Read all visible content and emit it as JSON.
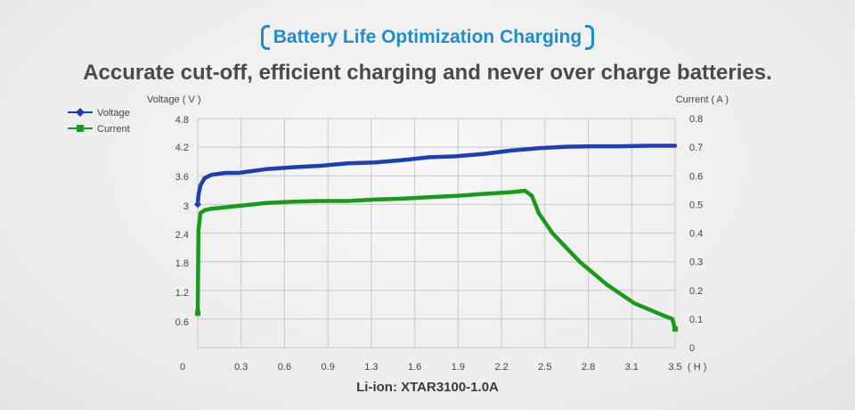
{
  "title": "Battery Life Optimization Charging",
  "subtitle": "Accurate cut-off, efficient charging and never over charge batteries.",
  "caption": "Li-ion: XTAR3100-1.0A",
  "colors": {
    "title": "#1d8ecd",
    "voltage": "#1f3fb0",
    "current": "#1a9a1a",
    "grid": "#c8c8c8"
  },
  "chart_data": {
    "type": "line",
    "ylabel": "Voltage ( V )",
    "y2label": "Current ( A )",
    "xunit": "( H )",
    "x_ticks": [
      "0",
      "0.3",
      "0.6",
      "0.9",
      "1.3",
      "1.6",
      "1.9",
      "2.2",
      "2.5",
      "2.8",
      "3.1",
      "3.5"
    ],
    "y_ticks": [
      "0.6",
      "1.2",
      "1.8",
      "2.4",
      "3",
      "3.6",
      "4.2",
      "4.8"
    ],
    "y2_ticks": [
      "0",
      "0.1",
      "0.2",
      "0.3",
      "0.4",
      "0.5",
      "0.6",
      "0.7",
      "0.8"
    ],
    "xlim": [
      0,
      3.5
    ],
    "ylim": [
      0,
      4.8
    ],
    "y2lim": [
      0,
      0.8
    ],
    "grid": true,
    "legend_position": "top-left",
    "series": [
      {
        "name": "Voltage",
        "axis": "left",
        "marker": "diamond",
        "x": [
          0,
          0.005,
          0.02,
          0.05,
          0.1,
          0.2,
          0.3,
          0.5,
          0.7,
          0.9,
          1.1,
          1.3,
          1.5,
          1.7,
          1.9,
          2.1,
          2.3,
          2.5,
          2.7,
          2.9,
          3.1,
          3.3,
          3.5
        ],
        "y": [
          3.0,
          3.2,
          3.4,
          3.55,
          3.62,
          3.66,
          3.66,
          3.74,
          3.78,
          3.81,
          3.86,
          3.88,
          3.93,
          3.99,
          4.01,
          4.06,
          4.13,
          4.18,
          4.21,
          4.22,
          4.22,
          4.23,
          4.23
        ]
      },
      {
        "name": "Current",
        "axis": "right",
        "marker": "square",
        "x": [
          0,
          0.005,
          0.02,
          0.05,
          0.1,
          0.2,
          0.3,
          0.5,
          0.7,
          0.9,
          1.1,
          1.3,
          1.5,
          1.7,
          1.9,
          2.1,
          2.3,
          2.4,
          2.45,
          2.5,
          2.6,
          2.8,
          3.0,
          3.2,
          3.4,
          3.48,
          3.5
        ],
        "y": [
          0.12,
          0.41,
          0.47,
          0.48,
          0.485,
          0.49,
          0.495,
          0.505,
          0.51,
          0.512,
          0.512,
          0.517,
          0.52,
          0.525,
          0.53,
          0.537,
          0.543,
          0.548,
          0.53,
          0.47,
          0.4,
          0.3,
          0.22,
          0.155,
          0.115,
          0.1,
          0.065
        ]
      }
    ]
  }
}
